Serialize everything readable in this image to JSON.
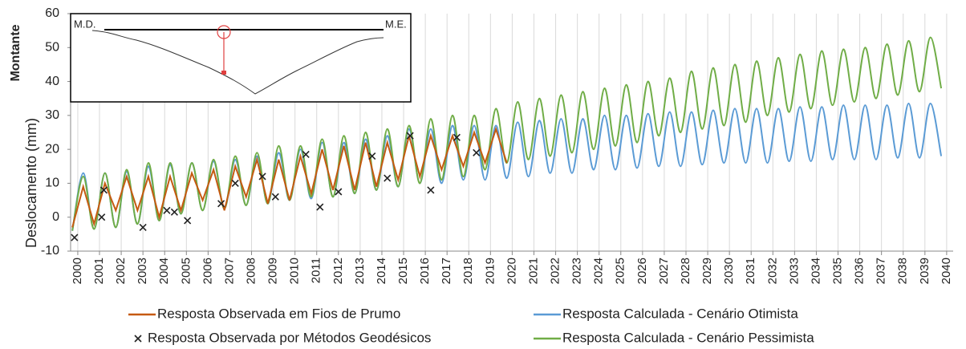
{
  "chart_data": {
    "type": "line",
    "y_label": "Deslocamento (mm)",
    "side_label": "Montante",
    "annotations": [
      "M.D.",
      "M.E."
    ],
    "ylim": [
      -10,
      60
    ],
    "yticks": [
      -10,
      0,
      10,
      20,
      30,
      40,
      50,
      60
    ],
    "xlim": [
      1999.67,
      2040.3
    ],
    "xticks": [
      2000,
      2001,
      2002,
      2003,
      2004,
      2005,
      2006,
      2007,
      2008,
      2009,
      2010,
      2011,
      2012,
      2013,
      2014,
      2015,
      2016,
      2017,
      2018,
      2019,
      2020,
      2021,
      2022,
      2023,
      2024,
      2025,
      2026,
      2027,
      2028,
      2029,
      2030,
      2031,
      2032,
      2033,
      2034,
      2035,
      2036,
      2037,
      2038,
      2039,
      2040
    ],
    "grid": "x",
    "x": [
      1999.75,
      2000.25,
      2000.75,
      2001.25,
      2001.75,
      2002.25,
      2002.75,
      2003.25,
      2003.75,
      2004.25,
      2004.75,
      2005.25,
      2005.75,
      2006.25,
      2006.75,
      2007.25,
      2007.75,
      2008.25,
      2008.75,
      2009.25,
      2009.75,
      2010.25,
      2010.75,
      2011.25,
      2011.75,
      2012.25,
      2012.75,
      2013.25,
      2013.75,
      2014.25,
      2014.75,
      2015.25,
      2015.75,
      2016.25,
      2016.75,
      2017.25,
      2017.75,
      2018.25,
      2018.75,
      2019.25,
      2019.75,
      2020.25,
      2020.75,
      2021.25,
      2021.75,
      2022.25,
      2022.75,
      2023.25,
      2023.75,
      2024.25,
      2024.75,
      2025.25,
      2025.75,
      2026.25,
      2026.75,
      2027.25,
      2027.75,
      2028.25,
      2028.75,
      2029.25,
      2029.75,
      2030.25,
      2030.75,
      2031.25,
      2031.75,
      2032.25,
      2032.75,
      2033.25,
      2033.75,
      2034.25,
      2034.75,
      2035.25,
      2035.75,
      2036.25,
      2036.75,
      2037.25,
      2037.75,
      2038.25,
      2038.75,
      2039.25,
      2039.75
    ],
    "series": [
      {
        "name": "Resposta Calculada - Cenário Otimista",
        "color": "#5b9bd5",
        "smooth": true,
        "values": [
          -4,
          13,
          -3.5,
          13,
          -3,
          13.5,
          -2,
          15,
          -1,
          15.5,
          1,
          16,
          2,
          16.5,
          2.5,
          17,
          3.5,
          18,
          4,
          19,
          5,
          20,
          5.5,
          22,
          6,
          22,
          7,
          23,
          8,
          24,
          9,
          26,
          10,
          26,
          10,
          27,
          11,
          27,
          11,
          27,
          11.5,
          28,
          12,
          28.5,
          13,
          29,
          13,
          29,
          14,
          30,
          14,
          30,
          14.5,
          30.5,
          15,
          31,
          15,
          31,
          15.5,
          31.5,
          16,
          32,
          16,
          32,
          16,
          32,
          16.5,
          32.5,
          16.5,
          32.5,
          17,
          33,
          17,
          33,
          17,
          33,
          17.5,
          33.5,
          17.5,
          33.5,
          18
        ]
      },
      {
        "name": "Resposta Calculada - Cenário Pessimista",
        "color": "#70ad47",
        "smooth": true,
        "values": [
          -4,
          12,
          -3.5,
          13,
          -3,
          14,
          -2,
          16,
          -1,
          16,
          1,
          16,
          2,
          17,
          2.5,
          18,
          3.5,
          19,
          4,
          21,
          5,
          21,
          6,
          23,
          6,
          24,
          7,
          25,
          8,
          26,
          9,
          27,
          10,
          29,
          11,
          30,
          12,
          30,
          14,
          32,
          16,
          34,
          17,
          35,
          18,
          36,
          19,
          37,
          20,
          38,
          21,
          39,
          22,
          40,
          24,
          41,
          25,
          43,
          26,
          44,
          27,
          45,
          28,
          46,
          30,
          47,
          31,
          48,
          32,
          49,
          33,
          49.5,
          34,
          50,
          35,
          51,
          36,
          52,
          37,
          53,
          38
        ]
      },
      {
        "name": "Resposta Observada em Fios de Prumo",
        "color": "#c55a11",
        "smooth": false,
        "values": [
          -3,
          9,
          -2,
          10,
          2,
          12,
          2,
          12,
          0,
          12,
          2,
          13,
          5,
          14,
          2,
          15,
          6,
          17,
          4,
          17,
          5,
          18,
          7,
          20,
          8,
          21,
          8,
          22,
          9,
          22,
          11,
          24,
          12,
          24,
          14,
          24,
          15,
          25,
          16,
          26,
          16,
          null,
          null,
          null,
          null,
          null,
          null,
          null,
          null,
          null,
          null,
          null,
          null,
          null,
          null,
          null,
          null,
          null,
          null,
          null,
          null,
          null,
          null,
          null,
          null,
          null,
          null,
          null,
          null,
          null,
          null,
          null,
          null,
          null,
          null,
          null,
          null,
          null,
          null,
          null,
          null
        ]
      },
      {
        "name": "Resposta Observada por Métodos Geodésicos",
        "color": "#222222",
        "marker": "x",
        "x": [
          1999.85,
          2001.2,
          2001.1,
          2003.0,
          2004.1,
          2004.45,
          2005.05,
          2006.6,
          2007.25,
          2008.5,
          2009.1,
          2010.5,
          2011.15,
          2012.0,
          2013.55,
          2014.25,
          2015.3,
          2016.25,
          2017.45,
          2018.35
        ],
        "values": [
          -6,
          8,
          0,
          -3,
          2,
          1.5,
          -1,
          4,
          10,
          12,
          6,
          18.5,
          3,
          7.5,
          18,
          11.5,
          24,
          8,
          23.5,
          19
        ]
      }
    ]
  }
}
